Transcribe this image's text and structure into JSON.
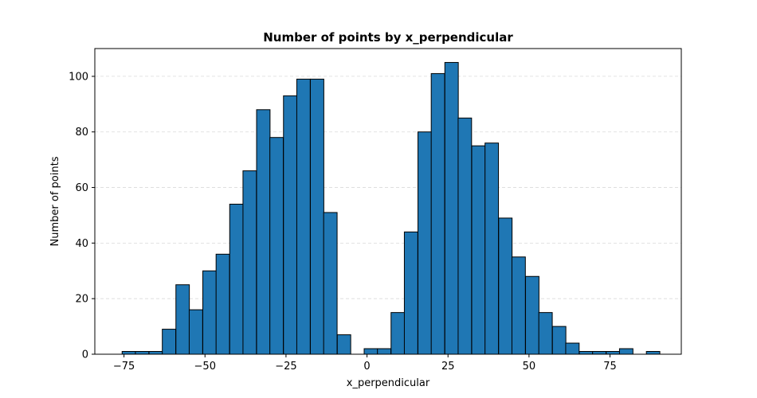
{
  "chart_data": {
    "type": "bar",
    "title": "Number of points by x_perpendicular",
    "xlabel": "x_perpendicular",
    "ylabel": "Number of points",
    "xlim": [
      -84,
      97
    ],
    "ylim": [
      0,
      110
    ],
    "x_ticks": [
      -75,
      -50,
      -25,
      0,
      25,
      50,
      75
    ],
    "x_tick_labels": [
      "−75",
      "−50",
      "−25",
      "0",
      "25",
      "50",
      "75"
    ],
    "y_ticks": [
      0,
      20,
      40,
      60,
      80,
      100
    ],
    "y_tick_labels": [
      "0",
      "20",
      "40",
      "60",
      "80",
      "100"
    ],
    "grid": "y, dashed",
    "legend": "none",
    "bar_color": "#1f77b4",
    "edge_color": "#000000",
    "bin_width": 4.15,
    "bin_edges_start": -75.6,
    "bins": [
      {
        "x": -73.5,
        "value": 1
      },
      {
        "x": -69.4,
        "value": 1
      },
      {
        "x": -65.2,
        "value": 1
      },
      {
        "x": -61.1,
        "value": 9
      },
      {
        "x": -56.9,
        "value": 25
      },
      {
        "x": -52.8,
        "value": 16
      },
      {
        "x": -48.6,
        "value": 30
      },
      {
        "x": -44.5,
        "value": 36
      },
      {
        "x": -40.3,
        "value": 54
      },
      {
        "x": -36.2,
        "value": 66
      },
      {
        "x": -32.0,
        "value": 88
      },
      {
        "x": -27.9,
        "value": 78
      },
      {
        "x": -23.7,
        "value": 93
      },
      {
        "x": -19.6,
        "value": 99
      },
      {
        "x": -15.4,
        "value": 99
      },
      {
        "x": -11.3,
        "value": 51
      },
      {
        "x": -7.1,
        "value": 7
      },
      {
        "x": -3.0,
        "value": 0
      },
      {
        "x": 1.2,
        "value": 2
      },
      {
        "x": 5.3,
        "value": 2
      },
      {
        "x": 9.5,
        "value": 15
      },
      {
        "x": 13.6,
        "value": 44
      },
      {
        "x": 17.8,
        "value": 80
      },
      {
        "x": 21.9,
        "value": 101
      },
      {
        "x": 26.1,
        "value": 105
      },
      {
        "x": 30.2,
        "value": 85
      },
      {
        "x": 34.4,
        "value": 75
      },
      {
        "x": 38.5,
        "value": 76
      },
      {
        "x": 42.7,
        "value": 49
      },
      {
        "x": 46.8,
        "value": 35
      },
      {
        "x": 51.0,
        "value": 28
      },
      {
        "x": 55.1,
        "value": 15
      },
      {
        "x": 59.3,
        "value": 10
      },
      {
        "x": 63.4,
        "value": 4
      },
      {
        "x": 67.6,
        "value": 1
      },
      {
        "x": 71.7,
        "value": 1
      },
      {
        "x": 75.9,
        "value": 1
      },
      {
        "x": 80.0,
        "value": 2
      },
      {
        "x": 84.2,
        "value": 0
      },
      {
        "x": 88.3,
        "value": 1
      }
    ]
  }
}
